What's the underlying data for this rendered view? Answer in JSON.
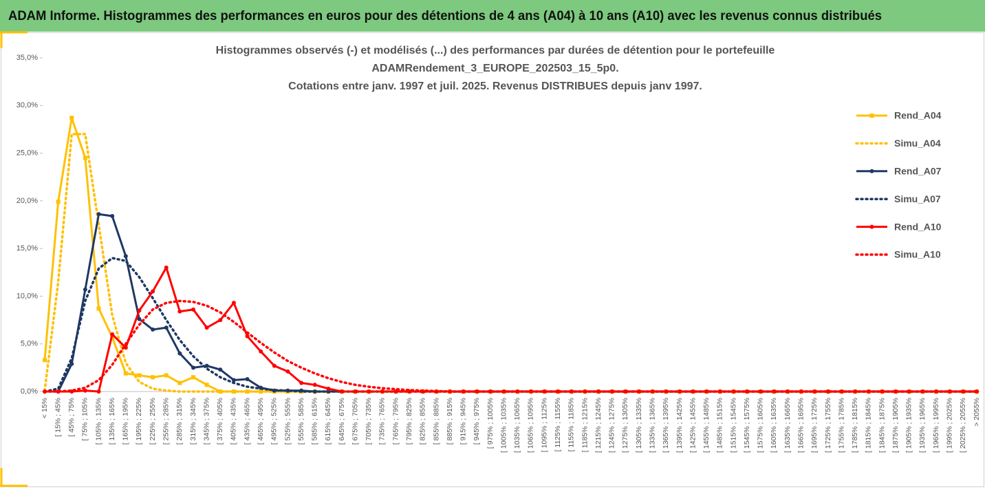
{
  "page_title": "ADAM Informe. Histogrammes des performances en euros pour des détentions de 4 ans (A04) à 10 ans (A10) avec les revenus connus distribués",
  "chart_data": {
    "type": "line",
    "title": [
      "Histogrammes observés (-) et modélisés (...) des performances par durées de détention pour le portefeuille",
      "ADAMRendement_3_EUROPE_202503_15_5p0.",
      "Cotations entre janv. 1997 et juil. 2025. Revenus DISTRIBUES depuis janv 1997."
    ],
    "categories": [
      "< 15%",
      "[ 15% ; 45%",
      "[ 45% ; 75%",
      "[ 75% ; 105%",
      "[ 105% ; 135%",
      "[ 135% ; 165%",
      "[ 165% ; 195%",
      "[ 195% ; 225%",
      "[ 225% ; 255%",
      "[ 255% ; 285%",
      "[ 285% ; 315%",
      "[ 315% ; 345%",
      "[ 345% ; 375%",
      "[ 375% ; 405%",
      "[ 405% ; 435%",
      "[ 435% ; 465%",
      "[ 465% ; 495%",
      "[ 495% ; 525%",
      "[ 525% ; 555%",
      "[ 555% ; 585%",
      "[ 585% ; 615%",
      "[ 615% ; 645%",
      "[ 645% ; 675%",
      "[ 675% ; 705%",
      "[ 705% ; 735%",
      "[ 735% ; 765%",
      "[ 765% ; 795%",
      "[ 795% ; 825%",
      "[ 825% ; 855%",
      "[ 855% ; 885%",
      "[ 885% ; 915%",
      "[ 915% ; 945%",
      "[ 945% ; 975%",
      "[ 975% ; 1005%",
      "[ 1005% ; 1035%",
      "[ 1035% ; 1065%",
      "[ 1065% ; 1095%",
      "[ 1095% ; 1125%",
      "[ 1125% ; 1155%",
      "[ 1155% ; 1185%",
      "[ 1185% ; 1215%",
      "[ 1215% ; 1245%",
      "[ 1245% ; 1275%",
      "[ 1275% ; 1305%",
      "[ 1305% ; 1335%",
      "[ 1335% ; 1365%",
      "[ 1365% ; 1395%",
      "[ 1395% ; 1425%",
      "[ 1425% ; 1455%",
      "[ 1455% ; 1485%",
      "[ 1485% ; 1515%",
      "[ 1515% ; 1545%",
      "[ 1545% ; 1575%",
      "[ 1575% ; 1605%",
      "[ 1605% ; 1635%",
      "[ 1635% ; 1665%",
      "[ 1665% ; 1695%",
      "[ 1695% ; 1725%",
      "[ 1725% ; 1755%",
      "[ 1755% ; 1785%",
      "[ 1785% ; 1815%",
      "[ 1815% ; 1845%",
      "[ 1845% ; 1875%",
      "[ 1875% ; 1905%",
      "[ 1905% ; 1935%",
      "[ 1935% ; 1965%",
      "[ 1965% ; 1995%",
      "[ 1995% ; 2025%",
      "[ 2025% ; 2055%",
      "> 2055%"
    ],
    "series": [
      {
        "name": "Rend_A04",
        "color": "#ffc000",
        "dash": "solid",
        "marker": "square",
        "values": [
          3.3,
          19.9,
          28.7,
          24.5,
          8.7,
          5.7,
          1.9,
          1.7,
          1.5,
          1.7,
          0.9,
          1.5,
          0.7,
          0,
          0,
          0,
          0,
          0,
          0,
          0,
          0,
          0,
          0,
          0,
          0,
          0,
          0,
          0,
          0,
          0,
          0,
          0,
          0,
          0,
          0,
          0,
          0,
          0,
          0,
          0,
          0,
          0,
          0,
          0,
          0,
          0,
          0,
          0,
          0,
          0,
          0,
          0,
          0,
          0,
          0,
          0,
          0,
          0,
          0,
          0,
          0,
          0,
          0,
          0,
          0,
          0,
          0,
          0,
          0,
          0
        ]
      },
      {
        "name": "Simu_A04",
        "color": "#ffc000",
        "dash": "dotted",
        "marker": "none",
        "values": [
          0.1,
          11.5,
          27.0,
          27.0,
          17.5,
          8.0,
          3.0,
          1.0,
          0.3,
          0.1,
          0,
          0,
          0,
          0,
          0,
          0,
          0,
          0,
          0,
          0,
          0,
          0,
          0,
          0,
          0,
          0,
          0,
          0,
          0,
          0,
          0,
          0,
          0,
          0,
          0,
          0,
          0,
          0,
          0,
          0,
          0,
          0,
          0,
          0,
          0,
          0,
          0,
          0,
          0,
          0,
          0,
          0,
          0,
          0,
          0,
          0,
          0,
          0,
          0,
          0,
          0,
          0,
          0,
          0,
          0,
          0,
          0,
          0,
          0,
          0
        ]
      },
      {
        "name": "Rend_A07",
        "color": "#1f3864",
        "dash": "solid",
        "marker": "circle",
        "values": [
          0,
          0,
          2.9,
          10.7,
          18.6,
          18.4,
          14.2,
          7.6,
          6.5,
          6.7,
          4.0,
          2.5,
          2.7,
          2.3,
          1.2,
          1.3,
          0.4,
          0.1,
          0.1,
          0.1,
          0,
          0,
          0,
          0,
          0,
          0,
          0,
          0,
          0,
          0,
          0,
          0,
          0,
          0,
          0,
          0,
          0,
          0,
          0,
          0,
          0,
          0,
          0,
          0,
          0,
          0,
          0,
          0,
          0,
          0,
          0,
          0,
          0,
          0,
          0,
          0,
          0,
          0,
          0,
          0,
          0,
          0,
          0,
          0,
          0,
          0,
          0,
          0,
          0,
          0
        ]
      },
      {
        "name": "Simu_A07",
        "color": "#1f3864",
        "dash": "dotted",
        "marker": "none",
        "values": [
          0,
          0.3,
          3.5,
          9.5,
          12.9,
          14.0,
          13.7,
          12.0,
          9.8,
          7.5,
          5.4,
          3.7,
          2.4,
          1.5,
          0.9,
          0.5,
          0.3,
          0.15,
          0.1,
          0,
          0,
          0,
          0,
          0,
          0,
          0,
          0,
          0,
          0,
          0,
          0,
          0,
          0,
          0,
          0,
          0,
          0,
          0,
          0,
          0,
          0,
          0,
          0,
          0,
          0,
          0,
          0,
          0,
          0,
          0,
          0,
          0,
          0,
          0,
          0,
          0,
          0,
          0,
          0,
          0,
          0,
          0,
          0,
          0,
          0,
          0,
          0,
          0,
          0,
          0
        ]
      },
      {
        "name": "Rend_A10",
        "color": "#ff0000",
        "dash": "solid",
        "marker": "circle",
        "values": [
          0,
          0,
          0,
          0.1,
          0,
          6.0,
          4.6,
          8.5,
          10.5,
          13.0,
          8.4,
          8.6,
          6.7,
          7.5,
          9.3,
          5.8,
          4.2,
          2.7,
          2.1,
          0.9,
          0.7,
          0.3,
          0,
          0,
          0,
          0,
          0,
          0,
          0,
          0,
          0,
          0,
          0,
          0,
          0,
          0,
          0,
          0,
          0,
          0,
          0,
          0,
          0,
          0,
          0,
          0,
          0,
          0,
          0,
          0,
          0,
          0,
          0,
          0,
          0,
          0,
          0,
          0,
          0,
          0,
          0,
          0,
          0,
          0,
          0,
          0,
          0,
          0,
          0,
          0
        ]
      },
      {
        "name": "Simu_A10",
        "color": "#ff0000",
        "dash": "dotted",
        "marker": "none",
        "values": [
          0,
          0,
          0.1,
          0.4,
          1.2,
          2.8,
          5.0,
          7.0,
          8.6,
          9.3,
          9.5,
          9.4,
          9.0,
          8.3,
          7.3,
          6.2,
          5.1,
          4.1,
          3.2,
          2.5,
          1.9,
          1.4,
          1.0,
          0.7,
          0.5,
          0.35,
          0.25,
          0.15,
          0.1,
          0.05,
          0,
          0,
          0,
          0,
          0,
          0,
          0,
          0,
          0,
          0,
          0,
          0,
          0,
          0,
          0,
          0,
          0,
          0,
          0,
          0,
          0,
          0,
          0,
          0,
          0,
          0,
          0,
          0,
          0,
          0,
          0,
          0,
          0,
          0,
          0,
          0,
          0,
          0,
          0,
          0
        ]
      }
    ],
    "ylim": [
      0,
      35
    ],
    "yticks": [
      {
        "value": 0,
        "label": "0,0%"
      },
      {
        "value": 5,
        "label": "5,0%"
      },
      {
        "value": 10,
        "label": "10,0%"
      },
      {
        "value": 15,
        "label": "15,0%"
      },
      {
        "value": 20,
        "label": "20,0%"
      },
      {
        "value": 25,
        "label": "25,0%"
      },
      {
        "value": 30,
        "label": "30,0%"
      },
      {
        "value": 35,
        "label": "35,0%"
      }
    ],
    "grid": false,
    "legend": "right"
  }
}
